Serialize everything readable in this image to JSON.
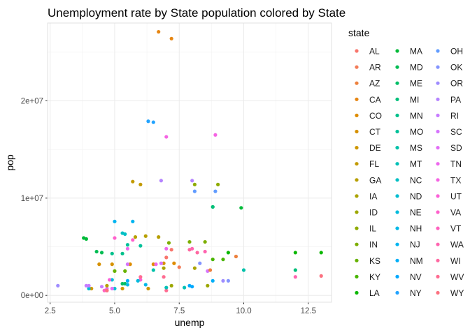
{
  "chart_data": {
    "type": "scatter",
    "title": "Unemployment rate by State population colored by State",
    "xlabel": "unemp",
    "ylabel": "pop",
    "xlim": [
      2.4,
      13.4
    ],
    "ylim": [
      -700000,
      28000000
    ],
    "xticks": [
      2.5,
      5.0,
      7.5,
      10.0,
      12.5
    ],
    "xtick_labels": [
      "2.5",
      "5.0",
      "7.5",
      "10.0",
      "12.5"
    ],
    "yticks": [
      0,
      10000000,
      20000000
    ],
    "ytick_labels": [
      "0e+00",
      "1e+07",
      "2e+07"
    ],
    "grid": true,
    "legend": {
      "title": "state",
      "position": "right",
      "columns": 3,
      "entries": [
        "AL",
        "AR",
        "AZ",
        "CA",
        "CO",
        "CT",
        "DE",
        "FL",
        "GA",
        "IA",
        "ID",
        "IL",
        "IN",
        "KS",
        "KY",
        "LA",
        "MA",
        "MD",
        "ME",
        "MI",
        "MN",
        "MO",
        "MS",
        "MT",
        "NC",
        "ND",
        "NE",
        "NH",
        "NJ",
        "NM",
        "NV",
        "NY",
        "OH",
        "OK",
        "OR",
        "PA",
        "RI",
        "SC",
        "SD",
        "TN",
        "TX",
        "UT",
        "VA",
        "VT",
        "WA",
        "WI",
        "WV",
        "WY"
      ]
    },
    "points": [
      {
        "state": "AL",
        "x": 7.2,
        "y": 4700000
      },
      {
        "state": "AR",
        "x": 7.5,
        "y": 2900000
      },
      {
        "state": "AZ",
        "x": 9.7,
        "y": 4000000
      },
      {
        "state": "WY",
        "x": 13.0,
        "y": 2000000
      },
      {
        "state": "WA",
        "x": 12.0,
        "y": 1900000
      },
      {
        "state": "WV",
        "x": 7.0,
        "y": 500000
      },
      {
        "state": "CA",
        "x": 6.7,
        "y": 27100000
      },
      {
        "state": "CA",
        "x": 7.2,
        "y": 26400000
      },
      {
        "state": "CO",
        "x": 7.3,
        "y": 3300000
      },
      {
        "state": "CT",
        "x": 4.4,
        "y": 3200000
      },
      {
        "state": "DE",
        "x": 4.1,
        "y": 700000
      },
      {
        "state": "FL",
        "x": 5.7,
        "y": 11700000
      },
      {
        "state": "FL",
        "x": 6.0,
        "y": 11400000
      },
      {
        "state": "GA",
        "x": 6.2,
        "y": 6100000
      },
      {
        "state": "DE",
        "x": 5.3,
        "y": 700000
      },
      {
        "state": "DE",
        "x": 6.3,
        "y": 700000
      },
      {
        "state": "CO",
        "x": 6.5,
        "y": 3200000
      },
      {
        "state": "CO",
        "x": 5.6,
        "y": 3200000
      },
      {
        "state": "CT",
        "x": 4.9,
        "y": 3200000
      },
      {
        "state": "CT",
        "x": 6.9,
        "y": 3300000
      },
      {
        "state": "IA",
        "x": 6.9,
        "y": 2800000
      },
      {
        "state": "IA",
        "x": 8.1,
        "y": 2800000
      },
      {
        "state": "GA",
        "x": 5.8,
        "y": 6000000
      },
      {
        "state": "GA",
        "x": 6.7,
        "y": 6000000
      },
      {
        "state": "ID",
        "x": 8.6,
        "y": 1000000
      },
      {
        "state": "ID",
        "x": 7.2,
        "y": 1000000
      },
      {
        "state": "IL",
        "x": 8.1,
        "y": 11400000
      },
      {
        "state": "IL",
        "x": 9.0,
        "y": 11400000
      },
      {
        "state": "IN",
        "x": 7.9,
        "y": 5500000
      },
      {
        "state": "IN",
        "x": 8.5,
        "y": 5500000
      },
      {
        "state": "KS",
        "x": 5.0,
        "y": 2500000
      },
      {
        "state": "KS",
        "x": 5.4,
        "y": 2500000
      },
      {
        "state": "KY",
        "x": 8.8,
        "y": 3700000
      },
      {
        "state": "KY",
        "x": 9.2,
        "y": 3700000
      },
      {
        "state": "LA",
        "x": 9.4,
        "y": 4400000
      },
      {
        "state": "LA",
        "x": 12.0,
        "y": 4400000
      },
      {
        "state": "LA",
        "x": 13.0,
        "y": 4400000
      },
      {
        "state": "MA",
        "x": 3.8,
        "y": 5900000
      },
      {
        "state": "MA",
        "x": 3.9,
        "y": 5800000
      },
      {
        "state": "MA",
        "x": 8.8,
        "y": 9100000
      },
      {
        "state": "MA",
        "x": 9.9,
        "y": 9000000
      },
      {
        "state": "MD",
        "x": 4.3,
        "y": 4500000
      },
      {
        "state": "MD",
        "x": 4.5,
        "y": 4400000
      },
      {
        "state": "ME",
        "x": 5.3,
        "y": 1200000
      },
      {
        "state": "ME",
        "x": 5.4,
        "y": 1200000
      },
      {
        "state": "MI",
        "x": 12.0,
        "y": 2600000
      },
      {
        "state": "MN",
        "x": 5.3,
        "y": 4300000
      },
      {
        "state": "MO",
        "x": 5.5,
        "y": 5200000
      },
      {
        "state": "MO",
        "x": 6.0,
        "y": 5100000
      },
      {
        "state": "MS",
        "x": 10.0,
        "y": 2600000
      },
      {
        "state": "MT",
        "x": 7.0,
        "y": 800000
      },
      {
        "state": "MT",
        "x": 7.7,
        "y": 800000
      },
      {
        "state": "NC",
        "x": 5.3,
        "y": 6400000
      },
      {
        "state": "NC",
        "x": 5.4,
        "y": 6300000
      },
      {
        "state": "ND",
        "x": 4.0,
        "y": 700000
      },
      {
        "state": "ND",
        "x": 5.0,
        "y": 700000
      },
      {
        "state": "NE",
        "x": 4.9,
        "y": 1600000
      },
      {
        "state": "NH",
        "x": 5.5,
        "y": 1100000
      },
      {
        "state": "NH",
        "x": 6.2,
        "y": 1100000
      },
      {
        "state": "NJ",
        "x": 5.0,
        "y": 7600000
      },
      {
        "state": "NJ",
        "x": 5.7,
        "y": 7600000
      },
      {
        "state": "NM",
        "x": 5.5,
        "y": 1500000
      },
      {
        "state": "NM",
        "x": 8.8,
        "y": 1500000
      },
      {
        "state": "NV",
        "x": 7.9,
        "y": 1000000
      },
      {
        "state": "NV",
        "x": 8.0,
        "y": 900000
      },
      {
        "state": "NY",
        "x": 6.3,
        "y": 17900000
      },
      {
        "state": "NY",
        "x": 6.5,
        "y": 17800000
      },
      {
        "state": "OH",
        "x": 8.1,
        "y": 10700000
      },
      {
        "state": "OH",
        "x": 8.9,
        "y": 10700000
      },
      {
        "state": "OK",
        "x": 8.3,
        "y": 3300000
      },
      {
        "state": "OR",
        "x": 9.2,
        "y": 1500000
      },
      {
        "state": "OR",
        "x": 2.8,
        "y": 1000000
      },
      {
        "state": "PA",
        "x": 6.8,
        "y": 11800000
      },
      {
        "state": "PA",
        "x": 8.0,
        "y": 11800000
      },
      {
        "state": "RI",
        "x": 3.9,
        "y": 1000000
      },
      {
        "state": "RI",
        "x": 4.0,
        "y": 1000000
      },
      {
        "state": "SC",
        "x": 6.8,
        "y": 3300000
      },
      {
        "state": "SC",
        "x": 5.5,
        "y": 3200000
      },
      {
        "state": "SD",
        "x": 4.9,
        "y": 700000
      },
      {
        "state": "SD",
        "x": 4.7,
        "y": 700000
      },
      {
        "state": "TN",
        "x": 5.5,
        "y": 4800000
      },
      {
        "state": "TN",
        "x": 7.0,
        "y": 4800000
      },
      {
        "state": "TX",
        "x": 7.0,
        "y": 16300000
      },
      {
        "state": "TX",
        "x": 8.9,
        "y": 16500000
      },
      {
        "state": "UT",
        "x": 4.8,
        "y": 1600000
      },
      {
        "state": "UT",
        "x": 6.0,
        "y": 1600000
      },
      {
        "state": "VA",
        "x": 5.0,
        "y": 5900000
      },
      {
        "state": "VA",
        "x": 5.7,
        "y": 5700000
      },
      {
        "state": "VT",
        "x": 4.6,
        "y": 500000
      },
      {
        "state": "VT",
        "x": 4.7,
        "y": 500000
      },
      {
        "state": "WA",
        "x": 8.5,
        "y": 4500000
      },
      {
        "state": "WA",
        "x": 8.0,
        "y": 4800000
      },
      {
        "state": "WI",
        "x": 7.9,
        "y": 4700000
      },
      {
        "state": "WI",
        "x": 8.2,
        "y": 4400000
      },
      {
        "state": "WV",
        "x": 6.0,
        "y": 1900000
      },
      {
        "state": "WV",
        "x": 6.9,
        "y": 1900000
      },
      {
        "state": "WY",
        "x": 4.7,
        "y": 500000
      },
      {
        "state": "MN",
        "x": 4.9,
        "y": 4300000
      },
      {
        "state": "MI",
        "x": 8.8,
        "y": 9100000
      },
      {
        "state": "IN",
        "x": 7.1,
        "y": 5400000
      },
      {
        "state": "SC",
        "x": 8.6,
        "y": 2500000
      },
      {
        "state": "AZ",
        "x": 8.7,
        "y": 2600000
      },
      {
        "state": "NE",
        "x": 5.9,
        "y": 1500000
      },
      {
        "state": "RI",
        "x": 4.5,
        "y": 900000
      },
      {
        "state": "OK",
        "x": 9.4,
        "y": 1500000
      },
      {
        "state": "MS",
        "x": 6.5,
        "y": 2600000
      },
      {
        "state": "AL",
        "x": 7.0,
        "y": 3900000
      },
      {
        "state": "TN",
        "x": 6.6,
        "y": 3200000
      },
      {
        "state": "GA",
        "x": 4.7,
        "y": 1000000
      }
    ]
  }
}
